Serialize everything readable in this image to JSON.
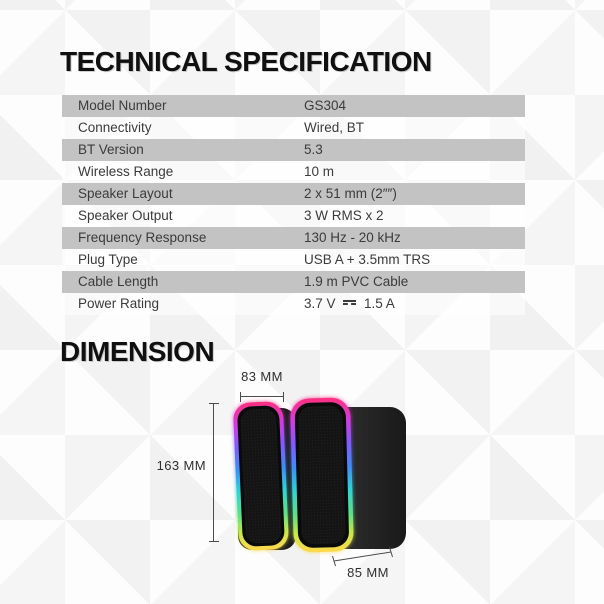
{
  "page": {
    "spec_title": "TECHNICAL SPECIFICATION",
    "dimension_title": "DIMENSION"
  },
  "spec_table": {
    "rows": [
      {
        "label": "Model Number",
        "value": "GS304"
      },
      {
        "label": "Connectivity",
        "value": "Wired, BT"
      },
      {
        "label": "BT Version",
        "value": "5.3"
      },
      {
        "label": "Wireless Range",
        "value": "10 m"
      },
      {
        "label": "Speaker Layout",
        "value": "2 x 51 mm (2″″)"
      },
      {
        "label": "Speaker Output",
        "value": "3 W RMS x 2"
      },
      {
        "label": "Frequency Response",
        "value": "130 Hz - 20 kHz"
      },
      {
        "label": "Plug Type",
        "value": "USB A + 3.5mm TRS"
      },
      {
        "label": "Cable Length",
        "value": "1.9 m PVC Cable"
      },
      {
        "label": "Power Rating",
        "value": "3.7 V ⎓ 1.5 A"
      }
    ]
  },
  "dimensions": {
    "width_label": "83 MM",
    "height_label": "163 MM",
    "depth_label": "85 MM"
  },
  "colors": {
    "row_gray": "#c3c3c4",
    "spec_text": "#3b3b3d",
    "title_black": "#101010",
    "dimension_line": "#4c4c4c",
    "rgb_strip": [
      "#ff2f7e",
      "#d43bdf",
      "#7d5cff",
      "#3f8df5",
      "#2fd4d4",
      "#5fe084",
      "#c8e84a",
      "#ffd84d"
    ],
    "speaker_body": "#242424",
    "speaker_mesh": "#141414"
  }
}
